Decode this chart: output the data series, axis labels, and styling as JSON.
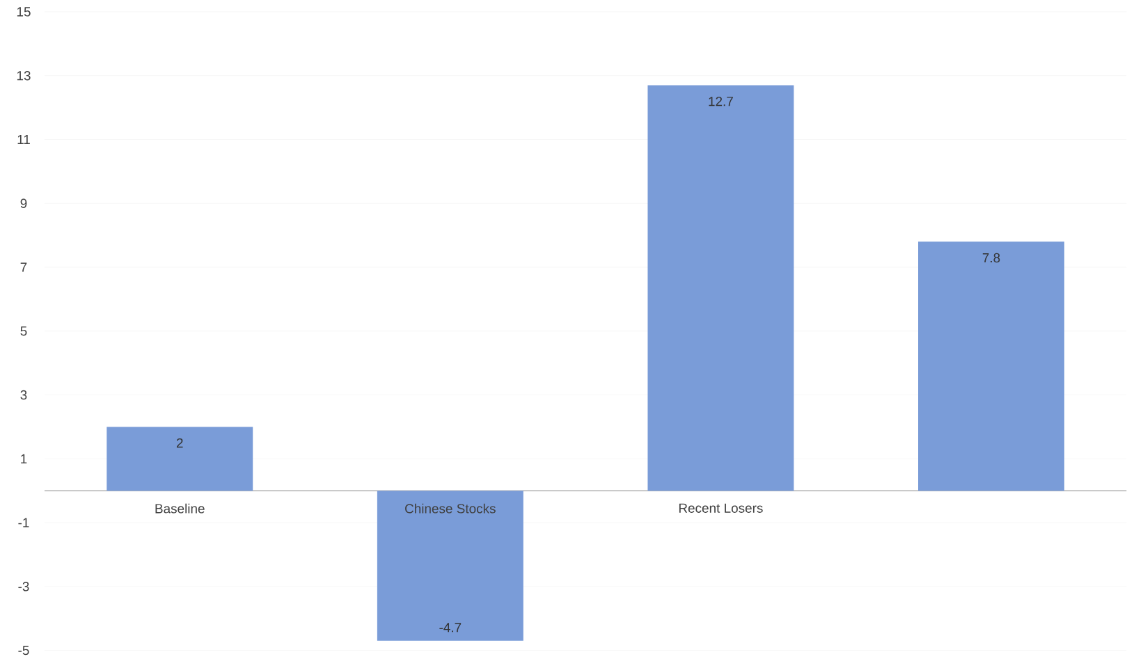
{
  "chart_data": {
    "type": "bar",
    "categories": [
      "Baseline",
      "Chinese Stocks",
      "Recent Losers",
      null
    ],
    "values": [
      2,
      -4.7,
      12.7,
      7.8
    ],
    "color": "#7a9cd8",
    "ylim": [
      -5,
      15
    ],
    "yticks": [
      -5,
      -3,
      -1,
      1,
      3,
      5,
      7,
      9,
      11,
      13,
      15
    ],
    "grid": "y",
    "data_labels": true
  }
}
